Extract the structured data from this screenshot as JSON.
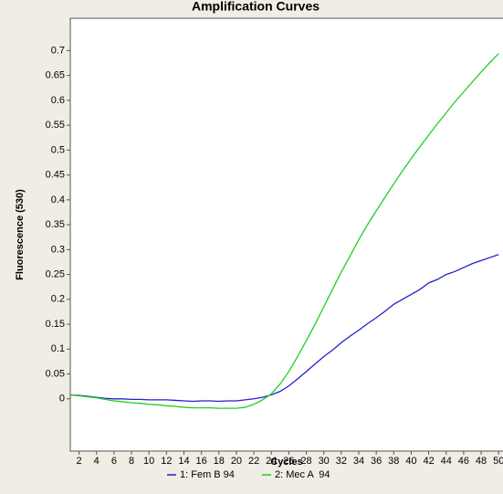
{
  "chart_data": {
    "type": "line",
    "title": "Amplification Curves",
    "xlabel": "Cycles",
    "ylabel": "Fluorescence (530)",
    "x": [
      1,
      2,
      3,
      4,
      5,
      6,
      7,
      8,
      9,
      10,
      11,
      12,
      13,
      14,
      15,
      16,
      17,
      18,
      19,
      20,
      21,
      22,
      23,
      24,
      25,
      26,
      27,
      28,
      29,
      30,
      31,
      32,
      33,
      34,
      35,
      36,
      37,
      38,
      39,
      40,
      41,
      42,
      43,
      44,
      45,
      46,
      47,
      48,
      49,
      50
    ],
    "series": [
      {
        "name": "1: Fem B 94",
        "color": "#2020d0",
        "values": [
          0.008,
          0.007,
          0.005,
          0.003,
          0.001,
          0.0,
          0.0,
          -0.001,
          -0.001,
          -0.002,
          -0.002,
          -0.002,
          -0.003,
          -0.004,
          -0.005,
          -0.004,
          -0.004,
          -0.005,
          -0.004,
          -0.004,
          -0.002,
          0.0,
          0.003,
          0.008,
          0.015,
          0.026,
          0.04,
          0.055,
          0.07,
          0.085,
          0.098,
          0.113,
          0.126,
          0.138,
          0.151,
          0.163,
          0.176,
          0.19,
          0.2,
          0.21,
          0.22,
          0.233,
          0.24,
          0.25,
          0.256,
          0.264,
          0.272,
          0.278,
          0.284,
          0.29
        ]
      },
      {
        "name": "2: Mec A  94",
        "color": "#20d020",
        "values": [
          0.008,
          0.006,
          0.004,
          0.002,
          -0.001,
          -0.004,
          -0.006,
          -0.008,
          -0.009,
          -0.011,
          -0.012,
          -0.014,
          -0.015,
          -0.017,
          -0.018,
          -0.018,
          -0.018,
          -0.019,
          -0.019,
          -0.019,
          -0.017,
          -0.011,
          -0.002,
          0.01,
          0.03,
          0.055,
          0.085,
          0.117,
          0.15,
          0.185,
          0.22,
          0.255,
          0.287,
          0.32,
          0.35,
          0.378,
          0.405,
          0.432,
          0.458,
          0.483,
          0.507,
          0.53,
          0.553,
          0.575,
          0.597,
          0.617,
          0.637,
          0.657,
          0.676,
          0.694
        ]
      }
    ],
    "xlim": [
      1,
      50.5
    ],
    "xticks": [
      2,
      4,
      6,
      8,
      10,
      12,
      14,
      16,
      18,
      20,
      22,
      24,
      26,
      28,
      30,
      32,
      34,
      36,
      38,
      40,
      42,
      44,
      46,
      48,
      50
    ],
    "ylim": [
      -0.105,
      0.765
    ],
    "yticks": [
      0,
      0.05,
      0.1,
      0.15,
      0.2,
      0.25,
      0.3,
      0.35,
      0.4,
      0.45,
      0.5,
      0.55,
      0.6,
      0.65,
      0.7
    ]
  }
}
